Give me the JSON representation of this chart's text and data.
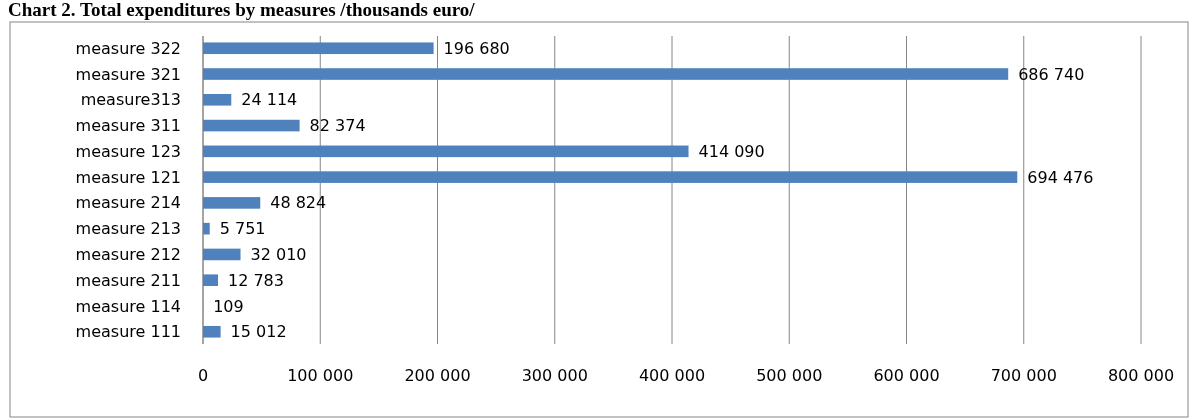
{
  "chart_data": {
    "type": "bar",
    "orientation": "horizontal",
    "title": "Chart 2. Total expenditures by measures /thousands euro/",
    "categories": [
      "measure 322",
      "measure 321",
      "measure313",
      "measure 311",
      "measure 123",
      "measure 121",
      "measure 214",
      "measure 213",
      "measure 212",
      "measure 211",
      "measure 114",
      "measure 111"
    ],
    "values": [
      196680,
      686740,
      24114,
      82374,
      414090,
      694476,
      48824,
      5751,
      32010,
      12783,
      109,
      15012
    ],
    "value_labels": [
      "196 680",
      "686 740",
      "24 114",
      "82 374",
      "414 090",
      "694 476",
      "48 824",
      "5 751",
      "32 010",
      "12 783",
      "109",
      "15 012"
    ],
    "color": "#4f81bd",
    "xlim": [
      0,
      800000
    ],
    "xticks": [
      0,
      {
        "value": 100000,
        "label": "100 000"
      },
      {
        "value": 200000,
        "label": "200 000"
      },
      {
        "value": 300000,
        "label": "300 000"
      },
      {
        "value": 400000,
        "label": "400 000"
      },
      {
        "value": 500000,
        "label": "500 000"
      },
      {
        "value": 600000,
        "label": "600 000"
      },
      {
        "value": 700000,
        "label": "700 000"
      },
      {
        "value": 800000,
        "label": "800 000"
      }
    ],
    "grid": "x"
  }
}
